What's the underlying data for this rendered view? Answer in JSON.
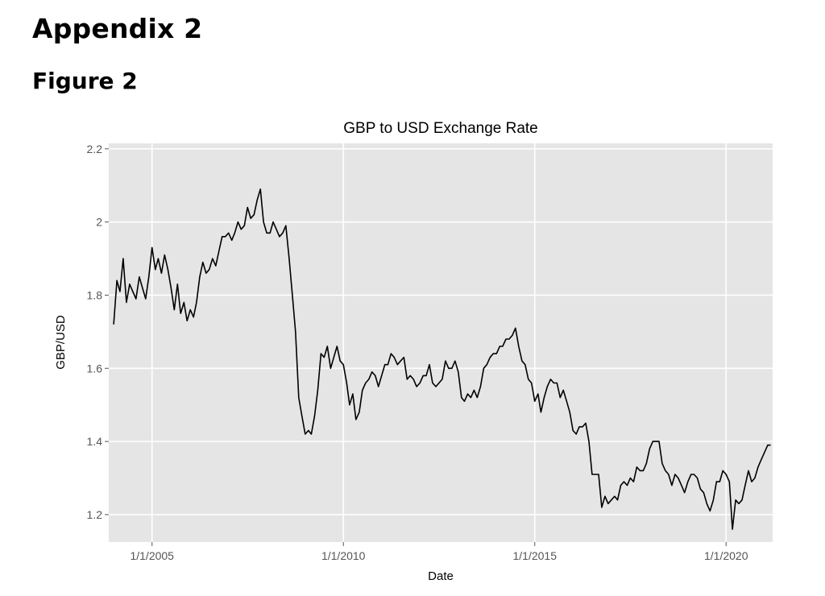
{
  "document": {
    "heading": "Appendix 2",
    "subheading": "Figure 2"
  },
  "chart_data": {
    "type": "line",
    "title": "GBP to USD Exchange Rate",
    "xlabel": "Date",
    "ylabel": "GBP/USD",
    "xlim": [
      "2003-11-15",
      "2021-03-20"
    ],
    "ylim": [
      1.125,
      2.215
    ],
    "x_ticks": [
      {
        "date": "2005-01-01",
        "label": "1/1/2005"
      },
      {
        "date": "2010-01-01",
        "label": "1/1/2010"
      },
      {
        "date": "2015-01-01",
        "label": "1/1/2015"
      },
      {
        "date": "2020-01-01",
        "label": "1/1/2020"
      }
    ],
    "y_ticks": [
      {
        "value": 1.2,
        "label": "1.2"
      },
      {
        "value": 1.4,
        "label": "1.4"
      },
      {
        "value": 1.6,
        "label": "1.6"
      },
      {
        "value": 1.8,
        "label": "1.8"
      },
      {
        "value": 2.0,
        "label": "2"
      },
      {
        "value": 2.2,
        "label": "2.2"
      }
    ],
    "grid": true,
    "background_color": "#e5e5e5",
    "grid_color": "#ffffff",
    "line_color": "#000000",
    "series": [
      {
        "points": [
          [
            "2004-01-01",
            1.72
          ],
          [
            "2004-02-01",
            1.84
          ],
          [
            "2004-03-01",
            1.81
          ],
          [
            "2004-04-01",
            1.9
          ],
          [
            "2004-05-01",
            1.78
          ],
          [
            "2004-06-01",
            1.83
          ],
          [
            "2004-07-01",
            1.81
          ],
          [
            "2004-08-01",
            1.79
          ],
          [
            "2004-09-01",
            1.85
          ],
          [
            "2004-10-01",
            1.82
          ],
          [
            "2004-11-01",
            1.79
          ],
          [
            "2004-12-01",
            1.85
          ],
          [
            "2005-01-01",
            1.93
          ],
          [
            "2005-02-01",
            1.87
          ],
          [
            "2005-03-01",
            1.9
          ],
          [
            "2005-04-01",
            1.86
          ],
          [
            "2005-05-01",
            1.91
          ],
          [
            "2005-06-01",
            1.87
          ],
          [
            "2005-07-01",
            1.82
          ],
          [
            "2005-08-01",
            1.76
          ],
          [
            "2005-09-01",
            1.83
          ],
          [
            "2005-10-01",
            1.75
          ],
          [
            "2005-11-01",
            1.78
          ],
          [
            "2005-12-01",
            1.73
          ],
          [
            "2006-01-01",
            1.76
          ],
          [
            "2006-02-01",
            1.74
          ],
          [
            "2006-03-01",
            1.78
          ],
          [
            "2006-04-01",
            1.85
          ],
          [
            "2006-05-01",
            1.89
          ],
          [
            "2006-06-01",
            1.86
          ],
          [
            "2006-07-01",
            1.87
          ],
          [
            "2006-08-01",
            1.9
          ],
          [
            "2006-09-01",
            1.88
          ],
          [
            "2006-10-01",
            1.92
          ],
          [
            "2006-11-01",
            1.96
          ],
          [
            "2006-12-01",
            1.96
          ],
          [
            "2007-01-01",
            1.97
          ],
          [
            "2007-02-01",
            1.95
          ],
          [
            "2007-03-01",
            1.97
          ],
          [
            "2007-04-01",
            2.0
          ],
          [
            "2007-05-01",
            1.98
          ],
          [
            "2007-06-01",
            1.99
          ],
          [
            "2007-07-01",
            2.04
          ],
          [
            "2007-08-01",
            2.01
          ],
          [
            "2007-09-01",
            2.02
          ],
          [
            "2007-10-01",
            2.06
          ],
          [
            "2007-11-01",
            2.09
          ],
          [
            "2007-12-01",
            2.0
          ],
          [
            "2008-01-01",
            1.97
          ],
          [
            "2008-02-01",
            1.97
          ],
          [
            "2008-03-01",
            2.0
          ],
          [
            "2008-04-01",
            1.98
          ],
          [
            "2008-05-01",
            1.96
          ],
          [
            "2008-06-01",
            1.97
          ],
          [
            "2008-07-01",
            1.99
          ],
          [
            "2008-08-01",
            1.9
          ],
          [
            "2008-09-01",
            1.8
          ],
          [
            "2008-10-01",
            1.7
          ],
          [
            "2008-11-01",
            1.52
          ],
          [
            "2008-12-01",
            1.47
          ],
          [
            "2009-01-01",
            1.42
          ],
          [
            "2009-02-01",
            1.43
          ],
          [
            "2009-03-01",
            1.42
          ],
          [
            "2009-04-01",
            1.47
          ],
          [
            "2009-05-01",
            1.54
          ],
          [
            "2009-06-01",
            1.64
          ],
          [
            "2009-07-01",
            1.63
          ],
          [
            "2009-08-01",
            1.66
          ],
          [
            "2009-09-01",
            1.6
          ],
          [
            "2009-10-01",
            1.63
          ],
          [
            "2009-11-01",
            1.66
          ],
          [
            "2009-12-01",
            1.62
          ],
          [
            "2010-01-01",
            1.61
          ],
          [
            "2010-02-01",
            1.56
          ],
          [
            "2010-03-01",
            1.5
          ],
          [
            "2010-04-01",
            1.53
          ],
          [
            "2010-05-01",
            1.46
          ],
          [
            "2010-06-01",
            1.48
          ],
          [
            "2010-07-01",
            1.54
          ],
          [
            "2010-08-01",
            1.56
          ],
          [
            "2010-09-01",
            1.57
          ],
          [
            "2010-10-01",
            1.59
          ],
          [
            "2010-11-01",
            1.58
          ],
          [
            "2010-12-01",
            1.55
          ],
          [
            "2011-01-01",
            1.58
          ],
          [
            "2011-02-01",
            1.61
          ],
          [
            "2011-03-01",
            1.61
          ],
          [
            "2011-04-01",
            1.64
          ],
          [
            "2011-05-01",
            1.63
          ],
          [
            "2011-06-01",
            1.61
          ],
          [
            "2011-07-01",
            1.62
          ],
          [
            "2011-08-01",
            1.63
          ],
          [
            "2011-09-01",
            1.57
          ],
          [
            "2011-10-01",
            1.58
          ],
          [
            "2011-11-01",
            1.57
          ],
          [
            "2011-12-01",
            1.55
          ],
          [
            "2012-01-01",
            1.56
          ],
          [
            "2012-02-01",
            1.58
          ],
          [
            "2012-03-01",
            1.58
          ],
          [
            "2012-04-01",
            1.61
          ],
          [
            "2012-05-01",
            1.56
          ],
          [
            "2012-06-01",
            1.55
          ],
          [
            "2012-07-01",
            1.56
          ],
          [
            "2012-08-01",
            1.57
          ],
          [
            "2012-09-01",
            1.62
          ],
          [
            "2012-10-01",
            1.6
          ],
          [
            "2012-11-01",
            1.6
          ],
          [
            "2012-12-01",
            1.62
          ],
          [
            "2013-01-01",
            1.59
          ],
          [
            "2013-02-01",
            1.52
          ],
          [
            "2013-03-01",
            1.51
          ],
          [
            "2013-04-01",
            1.53
          ],
          [
            "2013-05-01",
            1.52
          ],
          [
            "2013-06-01",
            1.54
          ],
          [
            "2013-07-01",
            1.52
          ],
          [
            "2013-08-01",
            1.55
          ],
          [
            "2013-09-01",
            1.6
          ],
          [
            "2013-10-01",
            1.61
          ],
          [
            "2013-11-01",
            1.63
          ],
          [
            "2013-12-01",
            1.64
          ],
          [
            "2014-01-01",
            1.64
          ],
          [
            "2014-02-01",
            1.66
          ],
          [
            "2014-03-01",
            1.66
          ],
          [
            "2014-04-01",
            1.68
          ],
          [
            "2014-05-01",
            1.68
          ],
          [
            "2014-06-01",
            1.69
          ],
          [
            "2014-07-01",
            1.71
          ],
          [
            "2014-08-01",
            1.66
          ],
          [
            "2014-09-01",
            1.62
          ],
          [
            "2014-10-01",
            1.61
          ],
          [
            "2014-11-01",
            1.57
          ],
          [
            "2014-12-01",
            1.56
          ],
          [
            "2015-01-01",
            1.51
          ],
          [
            "2015-02-01",
            1.53
          ],
          [
            "2015-03-01",
            1.48
          ],
          [
            "2015-04-01",
            1.52
          ],
          [
            "2015-05-01",
            1.55
          ],
          [
            "2015-06-01",
            1.57
          ],
          [
            "2015-07-01",
            1.56
          ],
          [
            "2015-08-01",
            1.56
          ],
          [
            "2015-09-01",
            1.52
          ],
          [
            "2015-10-01",
            1.54
          ],
          [
            "2015-11-01",
            1.51
          ],
          [
            "2015-12-01",
            1.48
          ],
          [
            "2016-01-01",
            1.43
          ],
          [
            "2016-02-01",
            1.42
          ],
          [
            "2016-03-01",
            1.44
          ],
          [
            "2016-04-01",
            1.44
          ],
          [
            "2016-05-01",
            1.45
          ],
          [
            "2016-06-01",
            1.4
          ],
          [
            "2016-07-01",
            1.31
          ],
          [
            "2016-08-01",
            1.31
          ],
          [
            "2016-09-01",
            1.31
          ],
          [
            "2016-10-01",
            1.22
          ],
          [
            "2016-11-01",
            1.25
          ],
          [
            "2016-12-01",
            1.23
          ],
          [
            "2017-01-01",
            1.24
          ],
          [
            "2017-02-01",
            1.25
          ],
          [
            "2017-03-01",
            1.24
          ],
          [
            "2017-04-01",
            1.28
          ],
          [
            "2017-05-01",
            1.29
          ],
          [
            "2017-06-01",
            1.28
          ],
          [
            "2017-07-01",
            1.3
          ],
          [
            "2017-08-01",
            1.29
          ],
          [
            "2017-09-01",
            1.33
          ],
          [
            "2017-10-01",
            1.32
          ],
          [
            "2017-11-01",
            1.32
          ],
          [
            "2017-12-01",
            1.34
          ],
          [
            "2018-01-01",
            1.38
          ],
          [
            "2018-02-01",
            1.4
          ],
          [
            "2018-03-01",
            1.4
          ],
          [
            "2018-04-01",
            1.4
          ],
          [
            "2018-05-01",
            1.34
          ],
          [
            "2018-06-01",
            1.32
          ],
          [
            "2018-07-01",
            1.31
          ],
          [
            "2018-08-01",
            1.28
          ],
          [
            "2018-09-01",
            1.31
          ],
          [
            "2018-10-01",
            1.3
          ],
          [
            "2018-11-01",
            1.28
          ],
          [
            "2018-12-01",
            1.26
          ],
          [
            "2019-01-01",
            1.29
          ],
          [
            "2019-02-01",
            1.31
          ],
          [
            "2019-03-01",
            1.31
          ],
          [
            "2019-04-01",
            1.3
          ],
          [
            "2019-05-01",
            1.27
          ],
          [
            "2019-06-01",
            1.26
          ],
          [
            "2019-07-01",
            1.23
          ],
          [
            "2019-08-01",
            1.21
          ],
          [
            "2019-09-01",
            1.24
          ],
          [
            "2019-10-01",
            1.29
          ],
          [
            "2019-11-01",
            1.29
          ],
          [
            "2019-12-01",
            1.32
          ],
          [
            "2020-01-01",
            1.31
          ],
          [
            "2020-02-01",
            1.29
          ],
          [
            "2020-03-01",
            1.16
          ],
          [
            "2020-04-01",
            1.24
          ],
          [
            "2020-05-01",
            1.23
          ],
          [
            "2020-06-01",
            1.24
          ],
          [
            "2020-07-01",
            1.28
          ],
          [
            "2020-08-01",
            1.32
          ],
          [
            "2020-09-01",
            1.29
          ],
          [
            "2020-10-01",
            1.3
          ],
          [
            "2020-11-01",
            1.33
          ],
          [
            "2020-12-01",
            1.35
          ],
          [
            "2021-01-01",
            1.37
          ],
          [
            "2021-02-01",
            1.39
          ],
          [
            "2021-03-01",
            1.39
          ]
        ]
      }
    ]
  }
}
